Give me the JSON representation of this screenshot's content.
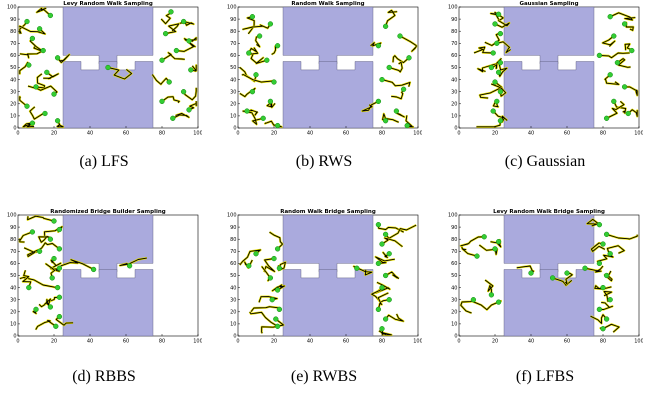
{
  "colors": {
    "obstacle": "#aaaadd",
    "path": "#000000",
    "glow": "#e8e000",
    "node": "#33cc33",
    "node_edge": "#118811"
  },
  "captions": [
    {
      "letter": "(a)",
      "name": "LFS"
    },
    {
      "letter": "(b)",
      "name": "RWS"
    },
    {
      "letter": "(c)",
      "name": "Gaussian"
    },
    {
      "letter": "(d)",
      "name": "RBBS"
    },
    {
      "letter": "(e)",
      "name": "RWBS"
    },
    {
      "letter": "(f)",
      "name": "LFBS"
    }
  ],
  "chart_data": [
    {
      "type": "scatter",
      "title": "Levy Random Walk Sampling",
      "xlim": [
        0,
        100
      ],
      "ylim": [
        0,
        100
      ],
      "xticks": [
        0,
        20,
        40,
        60,
        80,
        100
      ],
      "yticks": [
        0,
        10,
        20,
        30,
        40,
        50,
        60,
        70,
        80,
        90,
        100
      ],
      "points": [
        [
          5,
          88
        ],
        [
          12,
          82
        ],
        [
          8,
          74
        ],
        [
          18,
          93
        ],
        [
          14,
          64
        ],
        [
          22,
          58
        ],
        [
          6,
          52
        ],
        [
          16,
          46
        ],
        [
          10,
          34
        ],
        [
          20,
          28
        ],
        [
          5,
          18
        ],
        [
          15,
          12
        ],
        [
          22,
          6
        ],
        [
          8,
          4
        ],
        [
          85,
          96
        ],
        [
          92,
          88
        ],
        [
          82,
          78
        ],
        [
          95,
          72
        ],
        [
          88,
          64
        ],
        [
          80,
          56
        ],
        [
          96,
          48
        ],
        [
          84,
          38
        ],
        [
          92,
          30
        ],
        [
          80,
          22
        ],
        [
          95,
          15
        ],
        [
          86,
          8
        ],
        [
          50,
          50
        ]
      ]
    },
    {
      "type": "scatter",
      "title": "Random Walk Sampling",
      "xlim": [
        0,
        100
      ],
      "ylim": [
        0,
        100
      ],
      "xticks": [
        0,
        20,
        40,
        60,
        80,
        100
      ],
      "yticks": [
        0,
        10,
        20,
        30,
        40,
        50,
        60,
        70,
        80,
        90,
        100
      ],
      "points": [
        [
          8,
          92
        ],
        [
          18,
          86
        ],
        [
          12,
          76
        ],
        [
          22,
          68
        ],
        [
          6,
          62
        ],
        [
          16,
          56
        ],
        [
          10,
          44
        ],
        [
          20,
          38
        ],
        [
          8,
          30
        ],
        [
          18,
          22
        ],
        [
          5,
          14
        ],
        [
          14,
          8
        ],
        [
          22,
          2
        ],
        [
          82,
          84
        ],
        [
          90,
          76
        ],
        [
          78,
          68
        ],
        [
          95,
          58
        ],
        [
          84,
          50
        ],
        [
          80,
          40
        ],
        [
          92,
          32
        ],
        [
          78,
          22
        ],
        [
          88,
          14
        ],
        [
          82,
          6
        ],
        [
          94,
          2
        ]
      ]
    },
    {
      "type": "scatter",
      "title": "Gaussian Sampling",
      "xlim": [
        0,
        100
      ],
      "ylim": [
        0,
        100
      ],
      "xticks": [
        0,
        20,
        40,
        60,
        80,
        100
      ],
      "yticks": [
        0,
        10,
        20,
        30,
        40,
        50,
        60,
        70,
        80,
        90,
        100
      ],
      "points": [
        [
          22,
          94
        ],
        [
          20,
          86
        ],
        [
          23,
          78
        ],
        [
          21,
          70
        ],
        [
          19,
          62
        ],
        [
          23,
          54
        ],
        [
          22,
          46
        ],
        [
          20,
          38
        ],
        [
          23,
          30
        ],
        [
          21,
          22
        ],
        [
          19,
          14
        ],
        [
          23,
          6
        ],
        [
          18,
          50
        ],
        [
          84,
          92
        ],
        [
          92,
          86
        ],
        [
          86,
          76
        ],
        [
          96,
          64
        ],
        [
          88,
          54
        ],
        [
          84,
          44
        ],
        [
          92,
          34
        ],
        [
          86,
          22
        ],
        [
          94,
          12
        ],
        [
          82,
          8
        ],
        [
          78,
          60
        ]
      ]
    },
    {
      "type": "scatter",
      "title": "Randomized Bridge Builder Sampling",
      "xlim": [
        0,
        100
      ],
      "ylim": [
        0,
        100
      ],
      "xticks": [
        0,
        20,
        40,
        60,
        80,
        100
      ],
      "yticks": [
        0,
        10,
        20,
        30,
        40,
        50,
        60,
        70,
        80,
        90,
        100
      ],
      "points": [
        [
          20,
          95
        ],
        [
          23,
          88
        ],
        [
          18,
          80
        ],
        [
          23,
          72
        ],
        [
          20,
          64
        ],
        [
          23,
          56
        ],
        [
          19,
          48
        ],
        [
          22,
          40
        ],
        [
          23,
          32
        ],
        [
          18,
          24
        ],
        [
          23,
          16
        ],
        [
          21,
          8
        ],
        [
          42,
          55
        ],
        [
          62,
          58
        ],
        [
          8,
          86
        ],
        [
          12,
          70
        ],
        [
          6,
          40
        ],
        [
          10,
          22
        ]
      ]
    },
    {
      "type": "scatter",
      "title": "Random Walk Bridge Sampling",
      "xlim": [
        0,
        100
      ],
      "ylim": [
        0,
        100
      ],
      "xticks": [
        0,
        20,
        40,
        60,
        80,
        100
      ],
      "yticks": [
        0,
        10,
        20,
        30,
        40,
        50,
        60,
        70,
        80,
        90,
        100
      ],
      "points": [
        [
          22,
          72
        ],
        [
          20,
          64
        ],
        [
          23,
          56
        ],
        [
          18,
          48
        ],
        [
          22,
          38
        ],
        [
          19,
          30
        ],
        [
          23,
          22
        ],
        [
          21,
          14
        ],
        [
          22,
          8
        ],
        [
          78,
          92
        ],
        [
          82,
          84
        ],
        [
          80,
          76
        ],
        [
          84,
          68
        ],
        [
          78,
          60
        ],
        [
          82,
          50
        ],
        [
          80,
          40
        ],
        [
          84,
          30
        ],
        [
          78,
          22
        ],
        [
          82,
          14
        ],
        [
          80,
          6
        ],
        [
          66,
          56
        ],
        [
          10,
          68
        ],
        [
          6,
          58
        ]
      ]
    },
    {
      "type": "scatter",
      "title": "Levy Random Walk Bridge Sampling",
      "xlim": [
        0,
        100
      ],
      "ylim": [
        0,
        100
      ],
      "xticks": [
        0,
        20,
        40,
        60,
        80,
        100
      ],
      "yticks": [
        0,
        10,
        20,
        30,
        40,
        50,
        60,
        70,
        80,
        90,
        100
      ],
      "points": [
        [
          22,
          78
        ],
        [
          20,
          72
        ],
        [
          18,
          34
        ],
        [
          22,
          28
        ],
        [
          14,
          82
        ],
        [
          10,
          66
        ],
        [
          8,
          30
        ],
        [
          78,
          92
        ],
        [
          82,
          84
        ],
        [
          80,
          76
        ],
        [
          84,
          68
        ],
        [
          78,
          60
        ],
        [
          82,
          50
        ],
        [
          80,
          40
        ],
        [
          84,
          30
        ],
        [
          78,
          22
        ],
        [
          82,
          14
        ],
        [
          80,
          6
        ],
        [
          40,
          52
        ],
        [
          52,
          48
        ],
        [
          60,
          52
        ],
        [
          70,
          56
        ]
      ]
    }
  ]
}
